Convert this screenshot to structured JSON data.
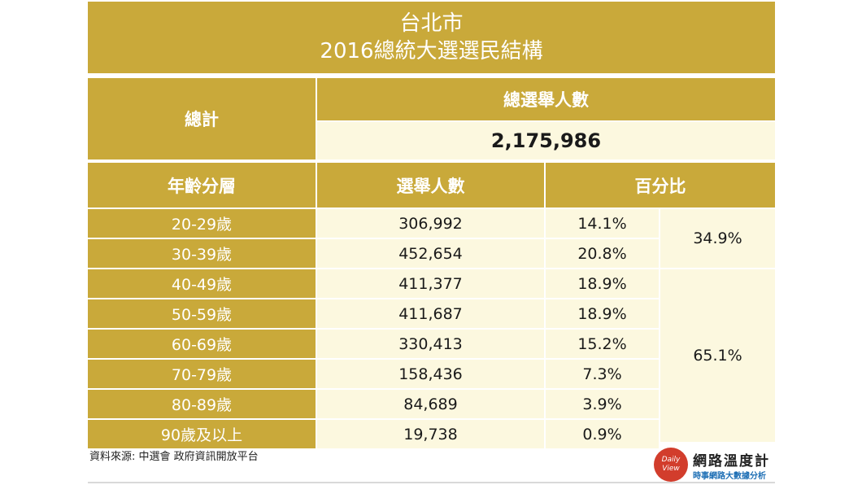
{
  "title": {
    "line1": "台北市",
    "line2": "2016總統大選選民結構"
  },
  "total": {
    "label": "總計",
    "header": "總選舉人數",
    "value": "2,175,986"
  },
  "table": {
    "columns": [
      "年齡分層",
      "選舉人數",
      "百分比"
    ],
    "rows": [
      {
        "age": "20-29歲",
        "voters": "306,992",
        "percent": "14.1%"
      },
      {
        "age": "30-39歲",
        "voters": "452,654",
        "percent": "20.8%"
      },
      {
        "age": "40-49歲",
        "voters": "411,377",
        "percent": "18.9%"
      },
      {
        "age": "50-59歲",
        "voters": "411,687",
        "percent": "18.9%"
      },
      {
        "age": "60-69歲",
        "voters": "330,413",
        "percent": "15.2%"
      },
      {
        "age": "70-79歲",
        "voters": "158,436",
        "percent": "7.3%"
      },
      {
        "age": "80-89歲",
        "voters": "84,689",
        "percent": "3.9%"
      },
      {
        "age": "90歲及以上",
        "voters": "19,738",
        "percent": "0.9%"
      }
    ],
    "group_totals": [
      "34.9%",
      "65.1%"
    ]
  },
  "source": "資料來源:  中選會 政府資訊開放平台",
  "logo": {
    "badge_line1": "Daily",
    "badge_line2": "View",
    "name": "網路溫度計",
    "tagline": "時事網路大數據分析"
  },
  "colors": {
    "header_gold": "#c9a93a",
    "cell_cream": "#fcf8df",
    "logo_red": "#d23d2c",
    "tagline_blue": "#1e6fb5"
  }
}
